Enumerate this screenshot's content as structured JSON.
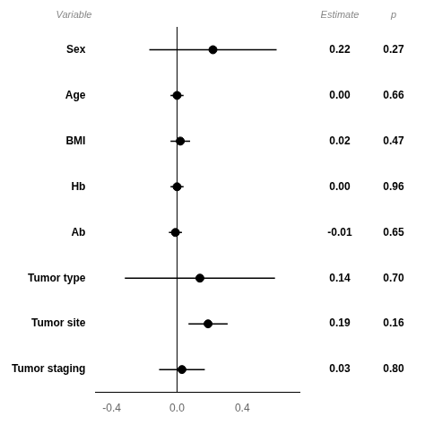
{
  "chart_data": {
    "type": "forest",
    "category_header": "Variable",
    "categories": [
      "Sex",
      "Age",
      "BMI",
      "Hb",
      "Ab",
      "Tumor type",
      "Tumor site",
      "Tumor staging"
    ],
    "values": [
      0.22,
      0.0,
      0.02,
      0.0,
      -0.01,
      0.14,
      0.19,
      0.03
    ],
    "ci_lower": [
      -0.17,
      -0.04,
      -0.04,
      -0.04,
      -0.05,
      -0.32,
      0.07,
      -0.11
    ],
    "ci_upper": [
      0.61,
      0.04,
      0.08,
      0.04,
      0.03,
      0.6,
      0.31,
      0.17
    ],
    "value_label_header": "Estimate",
    "value_labels": [
      "0.22",
      "0.00",
      "0.02",
      "0.00",
      "-0.01",
      "0.14",
      "0.19",
      "0.03"
    ],
    "p_value_header": "p",
    "p_values": [
      0.27,
      0.66,
      0.47,
      0.96,
      0.65,
      0.7,
      0.16,
      0.8
    ],
    "p_value_labels": [
      "0.27",
      "0.66",
      "0.47",
      "0.96",
      "0.65",
      "0.70",
      "0.16",
      "0.80"
    ],
    "reference_line": 0.0,
    "xlim": [
      -0.5,
      0.75
    ],
    "xticks": [
      -0.4,
      {
        "value": 0,
        "label": "0.0"
      },
      0.4
    ],
    "color": "#000000",
    "grid": false
  }
}
